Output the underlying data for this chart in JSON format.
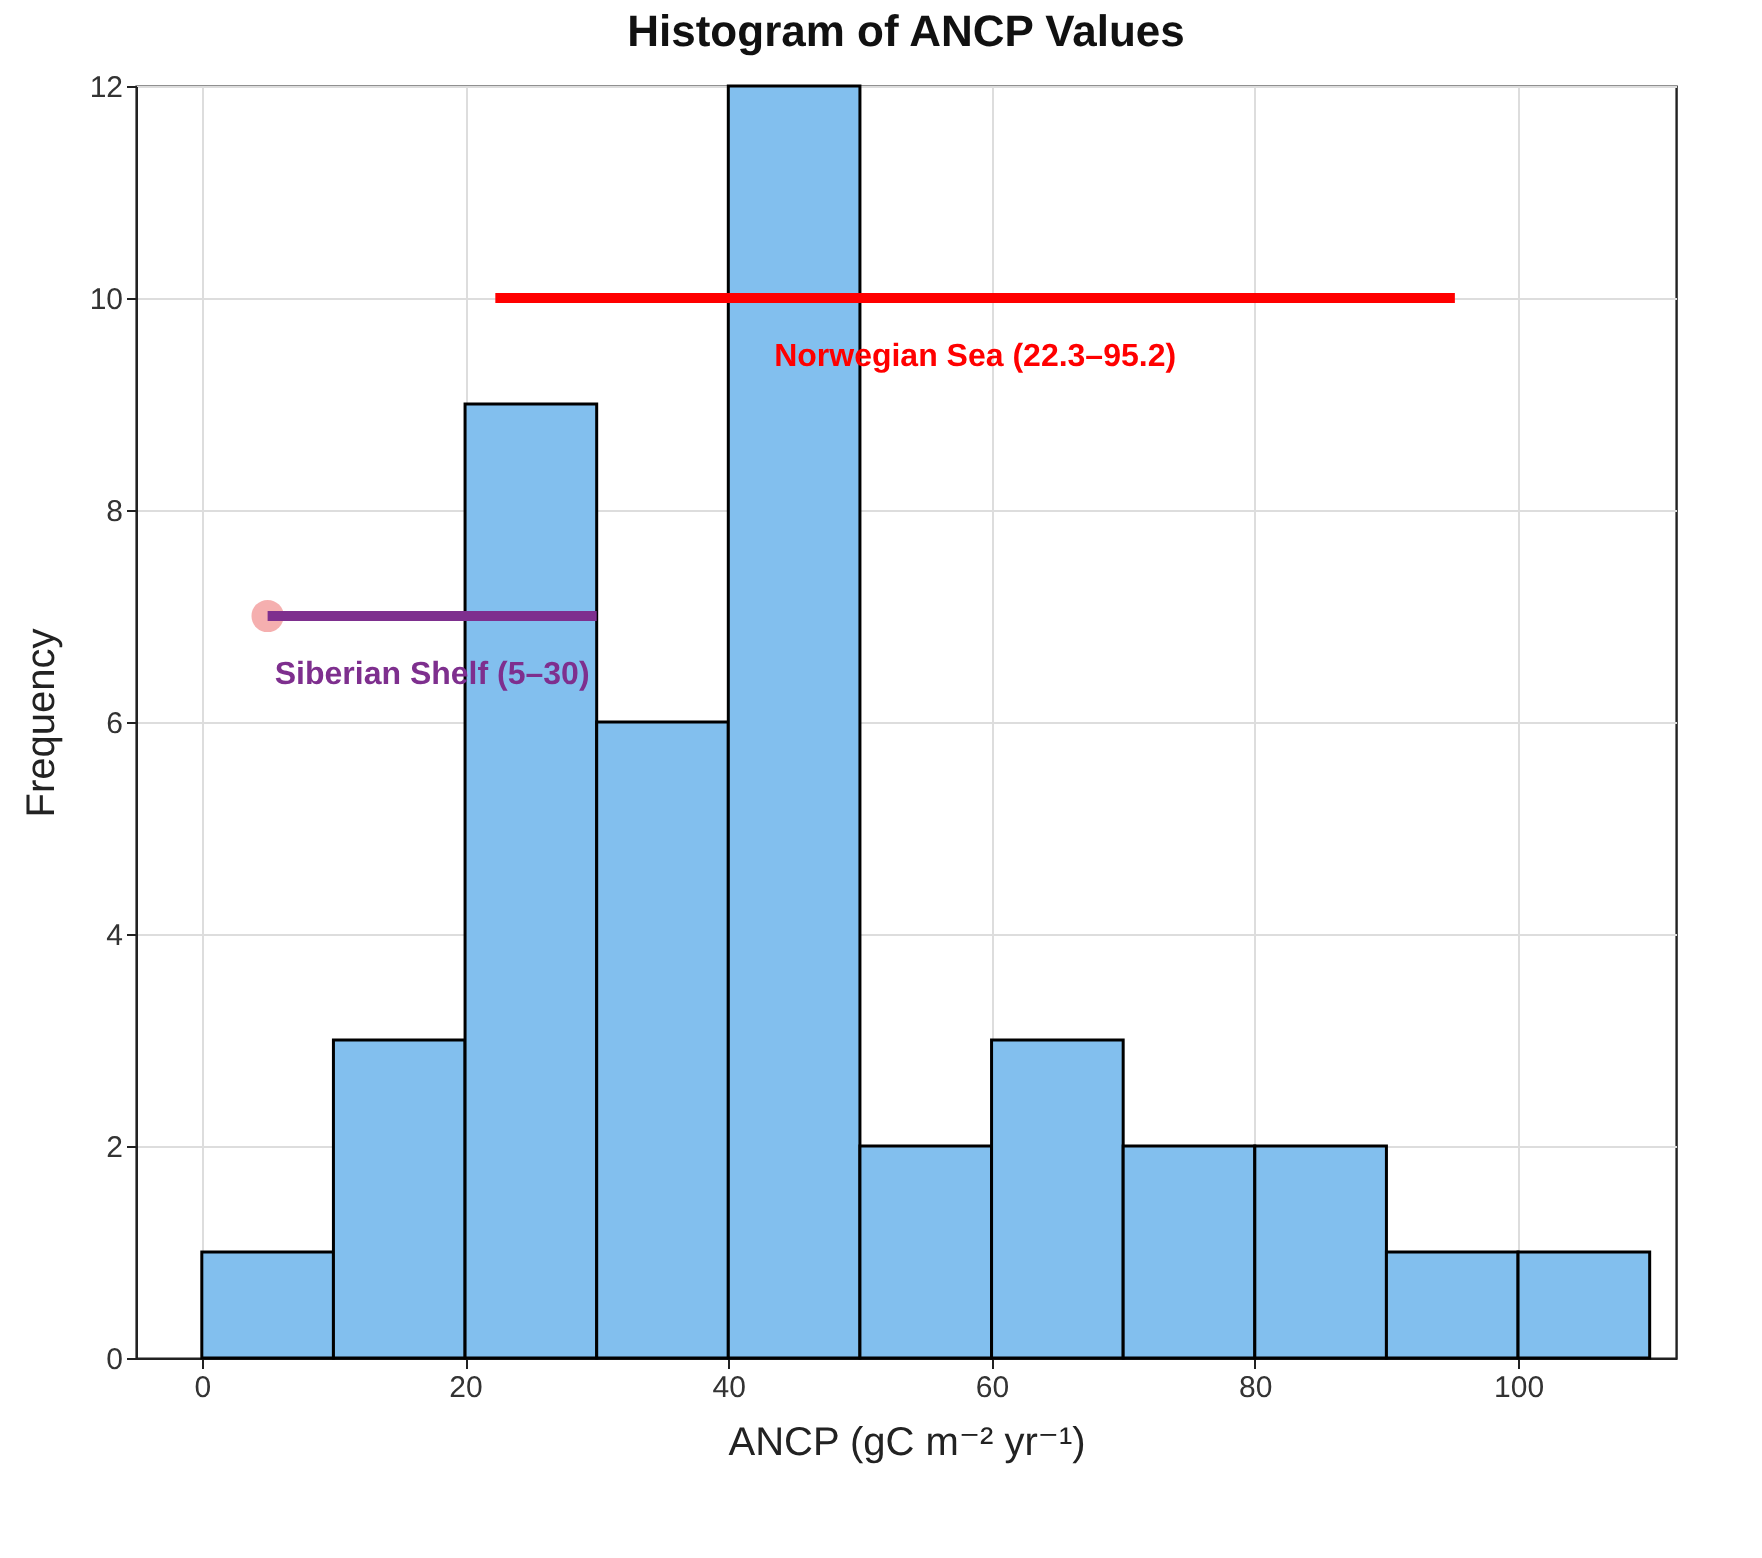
{
  "chart_data": {
    "type": "histogram",
    "title": "Histogram of ANCP Values",
    "xlabel": "ANCP (gC m⁻² yr⁻¹)",
    "ylabel": "Frequency",
    "bins": [
      0,
      10,
      20,
      30,
      40,
      50,
      60,
      70,
      80,
      90,
      100,
      110
    ],
    "values": [
      1,
      3,
      9,
      6,
      12,
      2,
      3,
      2,
      2,
      1,
      1
    ],
    "color": "#82bfee",
    "xlim": [
      -5,
      112
    ],
    "xticks": [
      0,
      20,
      40,
      60,
      80,
      100
    ],
    "ylim": [
      0,
      12
    ],
    "yticks": [
      0,
      2,
      4,
      6,
      8,
      10,
      12
    ],
    "grid": true,
    "series": [
      {
        "type": "line",
        "name": "Norwegian Sea (22.3–95.2)",
        "color": "#ff0000",
        "x": [
          22.3,
          95.2
        ],
        "values": [
          10,
          10
        ]
      },
      {
        "type": "line",
        "name": "Siberian Shelf (5–30)",
        "color": "#7e2f8e",
        "x": [
          5,
          30
        ],
        "values": [
          7,
          7
        ]
      },
      {
        "type": "scatter",
        "color": "#f4a6a6",
        "marker": "circle",
        "x": [
          5
        ],
        "values": [
          7
        ]
      }
    ]
  }
}
